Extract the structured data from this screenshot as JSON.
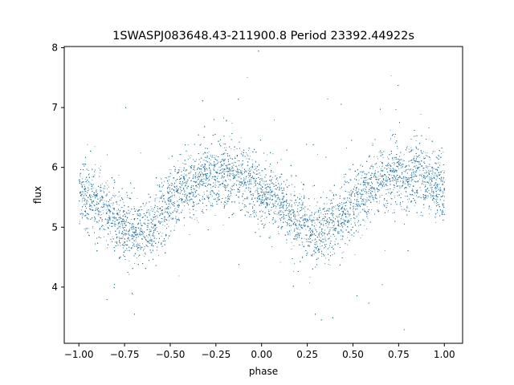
{
  "chart_data": {
    "type": "scatter",
    "title": "1SWASPJ083648.43-211900.8 Period 23392.44922s",
    "xlabel": "phase",
    "ylabel": "flux",
    "xlim": [
      -1.08,
      1.1
    ],
    "ylim": [
      3.06,
      8.02
    ],
    "xticks": [
      -1.0,
      -0.75,
      -0.5,
      -0.25,
      0.0,
      0.25,
      0.5,
      0.75,
      1.0
    ],
    "xtick_labels": [
      "−1.00",
      "−0.75",
      "−0.50",
      "−0.25",
      "0.00",
      "0.25",
      "0.50",
      "0.75",
      "1.00"
    ],
    "yticks": [
      4,
      5,
      6,
      7,
      8
    ],
    "ytick_labels": [
      "4",
      "5",
      "6",
      "7",
      "8"
    ],
    "grid": false,
    "marker_color": "#1f77b4",
    "point_count_approx": 15000,
    "light_curve_profile": {
      "phase": [
        -1.0,
        -0.9,
        -0.8,
        -0.7,
        -0.6,
        -0.5,
        -0.4,
        -0.3,
        -0.2,
        -0.1,
        0.0,
        0.1,
        0.2,
        0.3,
        0.4,
        0.5,
        0.6,
        0.7,
        0.8,
        0.9,
        1.0
      ],
      "flux": [
        5.6,
        5.4,
        5.1,
        4.9,
        5.05,
        5.45,
        5.7,
        5.85,
        5.9,
        5.8,
        5.6,
        5.4,
        5.1,
        4.9,
        5.05,
        5.45,
        5.7,
        5.85,
        5.9,
        5.8,
        5.6
      ],
      "scatter_sd": 0.27
    }
  }
}
